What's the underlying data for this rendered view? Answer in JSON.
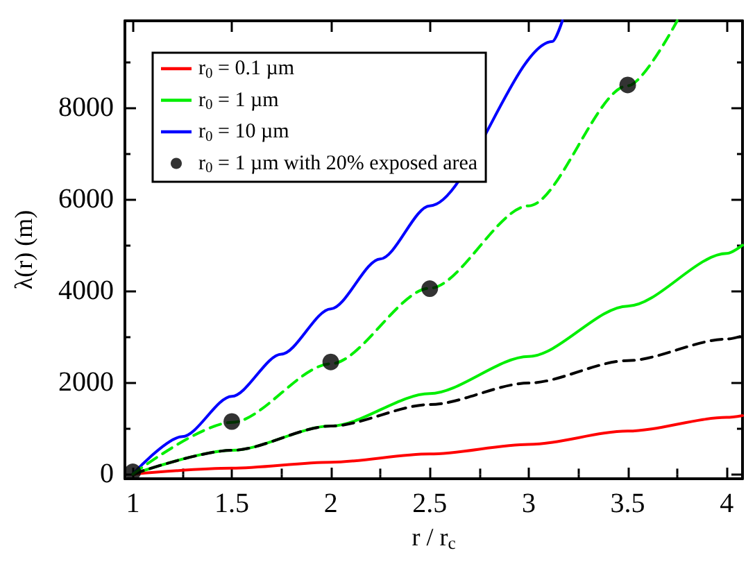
{
  "chart_data": {
    "type": "line",
    "xlabel": "r / r$_{c}$",
    "ylabel": "λ(r) (m)",
    "xlim": [
      0.96,
      4.08
    ],
    "xticks": [
      1,
      {
        "value": 1.25,
        "label": null
      },
      1.5,
      {
        "value": 1.75,
        "label": null
      },
      2,
      {
        "value": 2.25,
        "label": null
      },
      2.5,
      {
        "value": 2.75,
        "label": null
      },
      3,
      {
        "value": 3.25,
        "label": null
      },
      3.5,
      {
        "value": 3.75,
        "label": null
      },
      4
    ],
    "ylim": [
      -100,
      9900
    ],
    "yticks": [
      0,
      {
        "value": 1000,
        "label": null
      },
      2000,
      {
        "value": 3000,
        "label": null
      },
      4000,
      {
        "value": 5000,
        "label": null
      },
      6000,
      {
        "value": 7000,
        "label": null
      },
      8000,
      {
        "value": 9000,
        "label": null
      }
    ],
    "grid": false,
    "legend": "top left",
    "marker": "none",
    "line_style": "solid",
    "series": [
      {
        "name": "r$_{0}$ = 0.1 µm",
        "color": "#ff0000",
        "x": [
          1,
          1.5,
          2,
          2.5,
          3,
          3.5,
          4,
          4.08
        ],
        "values": [
          0,
          130,
          260,
          440,
          650,
          940,
          1240,
          1280
        ]
      },
      {
        "name": "r$_{0}$ = 1 µm",
        "color": "#00ee00",
        "x": [
          1,
          1.5,
          2,
          2.5,
          3,
          3.5,
          4,
          4.08
        ],
        "values": [
          0,
          520,
          1050,
          1760,
          2570,
          3670,
          4820,
          5000
        ]
      },
      {
        "name": "r$_{0}$ = 10 µm",
        "color": "#0000ff",
        "x": [
          1,
          1.25,
          1.5,
          1.75,
          2,
          2.25,
          2.5,
          3.12,
          3.17
        ],
        "values": [
          0,
          820,
          1700,
          2620,
          3610,
          4700,
          5860,
          9450,
          9900
        ]
      },
      {
        "color": "#000000",
        "line_style": "dashed",
        "x": [
          1,
          1.5,
          2,
          2.5,
          3,
          3.5,
          4,
          4.08
        ],
        "values": [
          0,
          520,
          1050,
          1520,
          1990,
          2480,
          2950,
          3020
        ]
      },
      {
        "color": "#00ee00",
        "line_style": "dashed",
        "x": [
          1,
          1.5,
          2,
          2.5,
          3,
          3.5,
          3.75
        ],
        "values": [
          0,
          1130,
          2410,
          4060,
          5860,
          8480,
          9900
        ]
      },
      {
        "name": "r$_{0}$ = 1 µm with 20% exposed area",
        "type": "scatter",
        "marker": "circle",
        "color": "#000000",
        "x": [
          1,
          1.5,
          2,
          2.5,
          3.5
        ],
        "values": [
          50,
          1150,
          2450,
          4050,
          8500
        ]
      }
    ]
  }
}
